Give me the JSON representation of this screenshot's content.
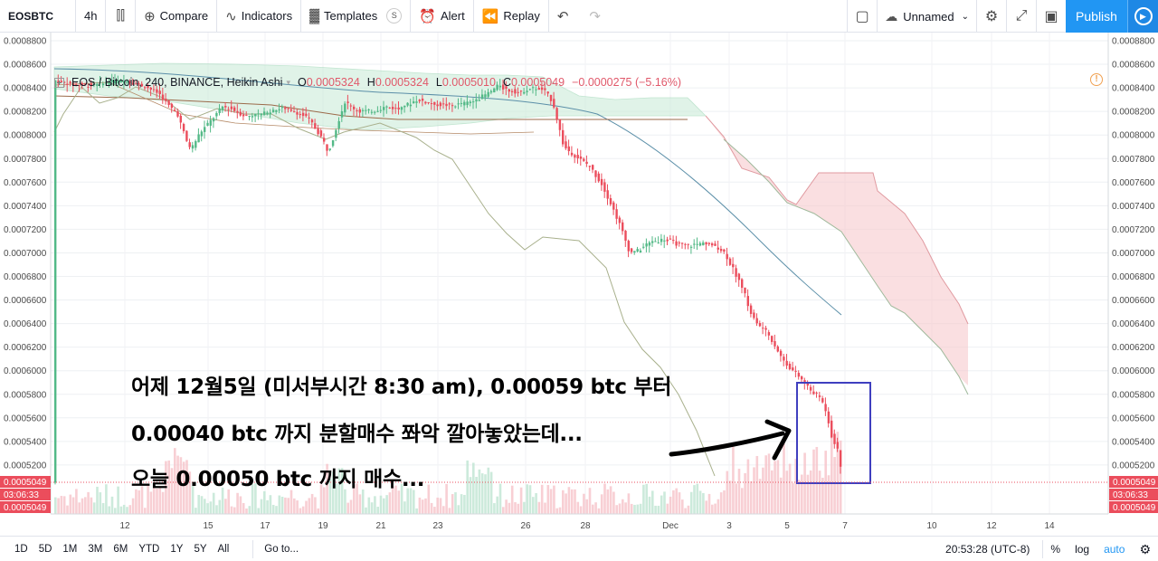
{
  "toolbar": {
    "symbol": "EOSBTC",
    "interval": "4h",
    "compare": "Compare",
    "indicators": "Indicators",
    "templates": "Templates",
    "templates_badge": "S",
    "alert": "Alert",
    "replay": "Replay",
    "layout_name": "Unnamed",
    "publish": "Publish"
  },
  "legend": {
    "title": "EOS / Bitcoin, 240, BINANCE, Heikin Ashi",
    "o_label": "O",
    "o": "0.0005324",
    "h_label": "H",
    "h": "0.0005324",
    "l_label": "L",
    "l": "0.0005010",
    "c_label": "C",
    "c": "0.0005049",
    "change": "−0.0000275 (−5.16%)"
  },
  "price_axis": {
    "ticks": [
      "0.0008800",
      "0.0008600",
      "0.0008400",
      "0.0008200",
      "0.0008000",
      "0.0007800",
      "0.0007600",
      "0.0007400",
      "0.0007200",
      "0.0007000",
      "0.0006800",
      "0.0006600",
      "0.0006400",
      "0.0006200",
      "0.0006000",
      "0.0005800",
      "0.0005600",
      "0.0005400",
      "0.0005200"
    ],
    "current_price": "0.0005049",
    "countdown": "03:06:33",
    "vol_price": "0.0005049"
  },
  "time_axis": {
    "ticks": [
      "12",
      "15",
      "17",
      "19",
      "21",
      "23",
      "26",
      "28",
      "Dec",
      "3",
      "5",
      "7",
      "10",
      "12",
      "14"
    ]
  },
  "annotation": {
    "line1": "어제 12월5일 (미서부시간 8:30 am), 0.00059 btc 부터",
    "line2": "0.00040 btc 까지 분할매수 쫘악 깔아놓았는데...",
    "line3": "오늘 0.00050 btc 까지 매수..."
  },
  "bottombar": {
    "ranges": [
      "1D",
      "5D",
      "1M",
      "3M",
      "6M",
      "YTD",
      "1Y",
      "5Y",
      "All"
    ],
    "goto": "Go to...",
    "clock": "20:53:28 (UTC-8)",
    "percent": "%",
    "log": "log",
    "auto": "auto"
  },
  "colors": {
    "up": "#53b987",
    "down": "#eb4d5c",
    "accent": "#2196f3",
    "highlight_box": "#3f3fbf"
  }
}
